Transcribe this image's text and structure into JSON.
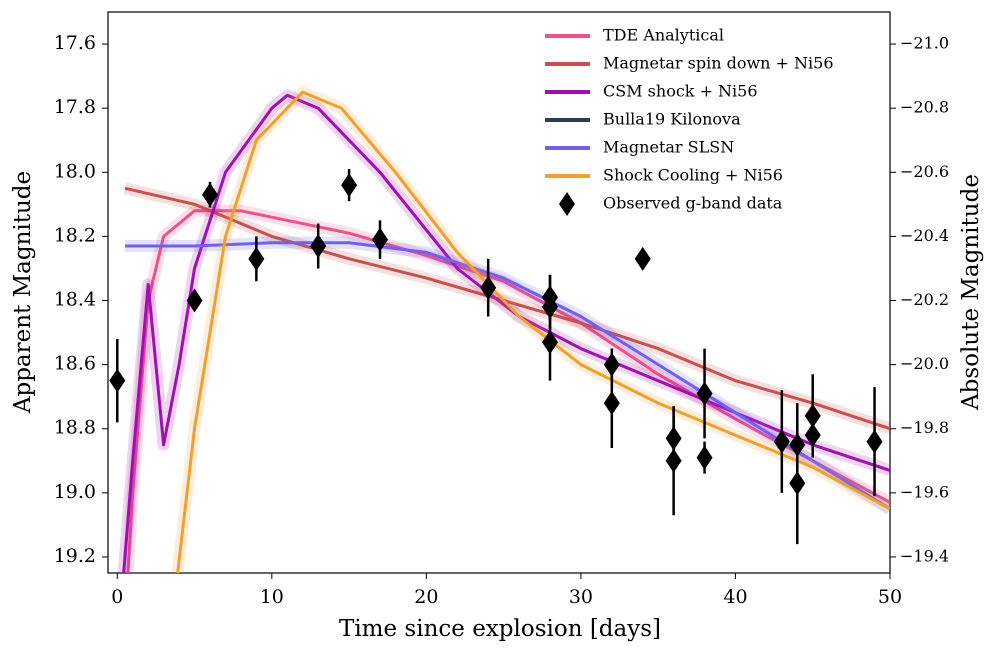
{
  "chart_data": {
    "type": "line",
    "xlabel": "Time since explosion [days]",
    "ylabel": "Apparent Magnitude",
    "y2label": "Absolute Magnitude",
    "xlim": [
      -0.6,
      50
    ],
    "xticks": [
      0,
      10,
      20,
      30,
      40,
      50
    ],
    "ylim": [
      19.25,
      17.5
    ],
    "yticks": [
      17.6,
      17.8,
      {
        "value": 18.0,
        "label": "18.0"
      },
      18.2,
      18.4,
      18.6,
      18.8,
      {
        "value": 19.0,
        "label": "19.0"
      },
      19.2
    ],
    "y2lim": [
      -19.35,
      -21.1
    ],
    "y2ticks": [
      {
        "value": -21.0,
        "label": "−21.0"
      },
      {
        "value": -20.8,
        "label": "−20.8"
      },
      {
        "value": -20.6,
        "label": "−20.6"
      },
      {
        "value": -20.4,
        "label": "−20.4"
      },
      {
        "value": -20.2,
        "label": "−20.2"
      },
      {
        "value": -20.0,
        "label": "−20.0"
      },
      {
        "value": -19.8,
        "label": "−19.8"
      },
      {
        "value": -19.6,
        "label": "−19.6"
      },
      {
        "value": -19.4,
        "label": "−19.4"
      }
    ],
    "series": [
      {
        "name": "TDE Analytical",
        "color": "#f0508a",
        "x": [
          0.5,
          1,
          2,
          3,
          5,
          8,
          10,
          15,
          20,
          25,
          30,
          35,
          40,
          45,
          50
        ],
        "values": [
          19.4,
          19.0,
          18.4,
          18.2,
          18.12,
          18.12,
          18.14,
          18.19,
          18.26,
          18.34,
          18.47,
          18.63,
          18.77,
          18.9,
          19.03
        ]
      },
      {
        "name": "Magnetar spin down + Ni56",
        "color": "#c85050",
        "x": [
          0.5,
          5,
          10,
          15,
          20,
          25,
          30,
          35,
          40,
          45,
          50
        ],
        "values": [
          18.05,
          18.1,
          18.2,
          18.27,
          18.33,
          18.4,
          18.47,
          18.55,
          18.65,
          18.72,
          18.8
        ]
      },
      {
        "name": "CSM shock + Ni56",
        "color": "#a010b0",
        "x": [
          0,
          1,
          2,
          3,
          4,
          5,
          7,
          10,
          11,
          13,
          17,
          22,
          26,
          30,
          35,
          40,
          45,
          50
        ],
        "values": [
          19.5,
          18.9,
          18.35,
          18.85,
          18.6,
          18.3,
          18.0,
          17.8,
          17.76,
          17.8,
          18.0,
          18.3,
          18.45,
          18.55,
          18.65,
          18.75,
          18.85,
          18.93
        ]
      },
      {
        "name": "Bulla19 Kilonova",
        "color": "#2c3e50",
        "x": [
          0,
          50
        ],
        "values": [
          null,
          null
        ]
      },
      {
        "name": "Magnetar SLSN",
        "color": "#7060f0",
        "x": [
          0.5,
          5,
          10,
          15,
          20,
          25,
          30,
          35,
          40,
          45,
          50
        ],
        "values": [
          18.23,
          18.23,
          18.22,
          18.22,
          18.25,
          18.33,
          18.45,
          18.6,
          18.75,
          18.9,
          19.05
        ]
      },
      {
        "name": "Shock Cooling + Ni56",
        "color": "#f0a030",
        "x": [
          3.3,
          5,
          7,
          9,
          12,
          14.5,
          18,
          22,
          26,
          30,
          35,
          40,
          45,
          50
        ],
        "values": [
          19.5,
          18.8,
          18.2,
          17.9,
          17.75,
          17.8,
          18.0,
          18.25,
          18.45,
          18.6,
          18.72,
          18.82,
          18.92,
          19.05
        ]
      }
    ],
    "observed": {
      "name": "Observed g-band data",
      "color": "#000000",
      "x": [
        0,
        5,
        6,
        9,
        13,
        15,
        17,
        24,
        28,
        28,
        28,
        32,
        32,
        34,
        36,
        36,
        38,
        38,
        43,
        44,
        44,
        45,
        45,
        49
      ],
      "values": [
        18.65,
        18.4,
        18.07,
        18.27,
        18.23,
        18.04,
        18.21,
        18.36,
        18.39,
        18.42,
        18.53,
        18.6,
        18.72,
        18.27,
        18.83,
        18.9,
        18.69,
        18.89,
        18.84,
        18.85,
        18.97,
        18.76,
        18.82,
        18.84
      ],
      "errors": [
        0.13,
        0.02,
        0.04,
        0.07,
        0.07,
        0.05,
        0.06,
        0.09,
        0.07,
        0.1,
        0.12,
        0.05,
        0.14,
        0.03,
        0.1,
        0.17,
        0.14,
        0.05,
        0.16,
        0.13,
        0.19,
        0.13,
        0.06,
        0.17
      ]
    }
  }
}
